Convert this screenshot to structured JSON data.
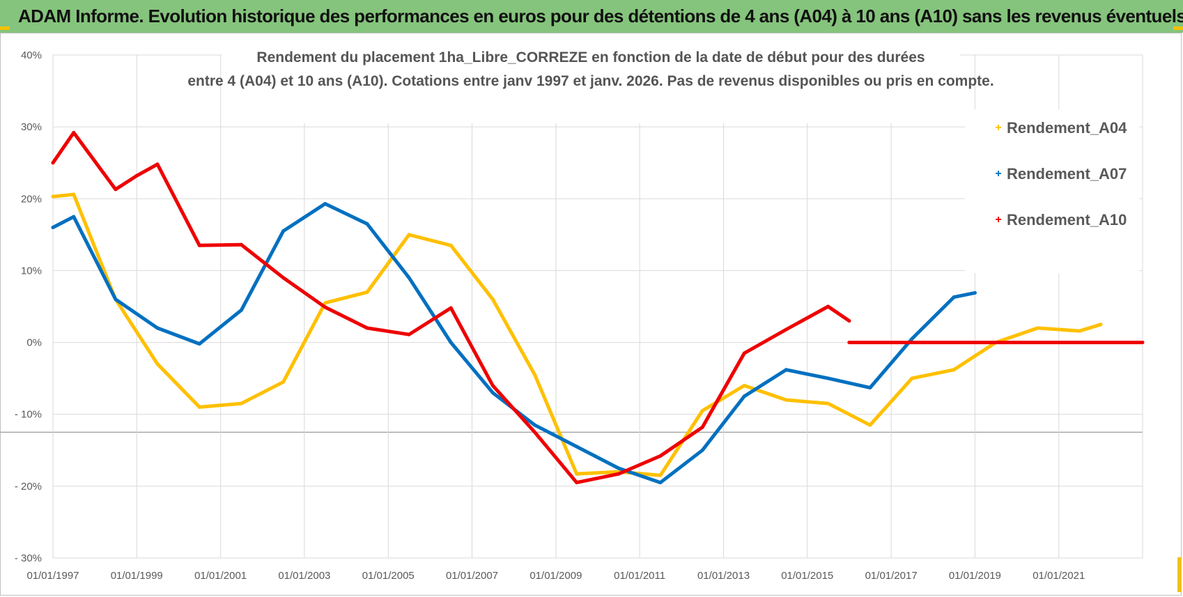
{
  "header": {
    "banner_title": "ADAM Informe. Evolution historique des performances en euros pour des détentions de 4 ans (A04) à 10 ans (A10) sans les revenus éventuels"
  },
  "colors": {
    "banner_bg": "#85c47c",
    "accent_corner": "#f2c200",
    "A04": "#ffc000",
    "A07": "#0070c0",
    "A10": "#ee0000",
    "grid": "#d9d9d9"
  },
  "chart_data": {
    "type": "line",
    "title_lines": [
      "Rendement du placement 1ha_Libre_CORREZE en fonction de la date de début pour des durées",
      "entre 4 (A04) et 10 ans (A10).  Cotations entre janv 1997 et janv. 2026. Pas de revenus disponibles ou pris en compte."
    ],
    "xlabel": "",
    "ylabel": "",
    "x_range": [
      "01/01/1997",
      "01/01/2023"
    ],
    "ylim": [
      -30,
      40
    ],
    "y_ticks": [
      {
        "value": 40,
        "label": "40%"
      },
      {
        "value": 30,
        "label": "30%"
      },
      {
        "value": 20,
        "label": "20%"
      },
      {
        "value": 10,
        "label": "10%"
      },
      {
        "value": 0,
        "label": "0%"
      },
      {
        "value": -10,
        "label": "- 10%"
      },
      {
        "value": -20,
        "label": "- 20%"
      },
      {
        "value": -30,
        "label": "- 30%"
      }
    ],
    "x_ticks": [
      "01/01/1997",
      "01/01/1999",
      "01/01/2001",
      "01/01/2003",
      "01/01/2005",
      "01/01/2007",
      "01/01/2009",
      "01/01/2011",
      "01/01/2013",
      "01/01/2015",
      "01/01/2017",
      "01/01/2019",
      "01/01/2021"
    ],
    "grid": true,
    "legend_position": "top-right",
    "series": [
      {
        "name": "Rendement_A04",
        "color": "#ffc000",
        "points": [
          [
            "1997-01-01",
            20.3
          ],
          [
            "1997-07-01",
            20.6
          ],
          [
            "1998-07-01",
            6.0
          ],
          [
            "1999-07-01",
            -3.0
          ],
          [
            "2000-07-01",
            -9.0
          ],
          [
            "2001-07-01",
            -8.5
          ],
          [
            "2002-07-01",
            -5.5
          ],
          [
            "2003-07-01",
            5.5
          ],
          [
            "2004-07-01",
            7.0
          ],
          [
            "2005-07-01",
            15.0
          ],
          [
            "2006-07-01",
            13.5
          ],
          [
            "2007-07-01",
            6.0
          ],
          [
            "2008-07-01",
            -4.5
          ],
          [
            "2009-07-01",
            -18.3
          ],
          [
            "2010-07-01",
            -18.0
          ],
          [
            "2011-07-01",
            -18.5
          ],
          [
            "2012-07-01",
            -9.5
          ],
          [
            "2013-07-01",
            -6.0
          ],
          [
            "2014-07-01",
            -8.0
          ],
          [
            "2015-07-01",
            -8.5
          ],
          [
            "2016-07-01",
            -11.5
          ],
          [
            "2017-07-01",
            -5.0
          ],
          [
            "2018-07-01",
            -3.8
          ],
          [
            "2019-07-01",
            0.0
          ],
          [
            "2020-07-01",
            2.0
          ],
          [
            "2021-07-01",
            1.6
          ],
          [
            "2022-01-01",
            2.5
          ]
        ]
      },
      {
        "name": "Rendement_A07",
        "color": "#0070c0",
        "points": [
          [
            "1997-01-01",
            16.0
          ],
          [
            "1997-07-01",
            17.5
          ],
          [
            "1998-07-01",
            6.0
          ],
          [
            "1999-07-01",
            2.0
          ],
          [
            "2000-07-01",
            -0.2
          ],
          [
            "2001-07-01",
            4.5
          ],
          [
            "2002-07-01",
            15.5
          ],
          [
            "2003-07-01",
            19.3
          ],
          [
            "2004-07-01",
            16.5
          ],
          [
            "2005-07-01",
            9.0
          ],
          [
            "2006-07-01",
            0.0
          ],
          [
            "2007-07-01",
            -7.0
          ],
          [
            "2008-07-01",
            -11.5
          ],
          [
            "2009-07-01",
            -14.5
          ],
          [
            "2010-07-01",
            -17.5
          ],
          [
            "2011-07-01",
            -19.5
          ],
          [
            "2012-07-01",
            -15.0
          ],
          [
            "2013-07-01",
            -7.5
          ],
          [
            "2014-07-01",
            -3.8
          ],
          [
            "2015-07-01",
            -5.0
          ],
          [
            "2016-07-01",
            -6.3
          ],
          [
            "2017-07-01",
            0.5
          ],
          [
            "2018-07-01",
            6.3
          ],
          [
            "2019-01-01",
            6.9
          ]
        ]
      },
      {
        "name": "Rendement_A10",
        "color": "#ee0000",
        "points": [
          [
            "1997-01-01",
            25.0
          ],
          [
            "1997-07-01",
            29.2
          ],
          [
            "1998-07-01",
            21.3
          ],
          [
            "1999-01-01",
            23.2
          ],
          [
            "1999-07-01",
            24.8
          ],
          [
            "2000-07-01",
            13.5
          ],
          [
            "2001-07-01",
            13.6
          ],
          [
            "2002-07-01",
            9.0
          ],
          [
            "2003-07-01",
            4.9
          ],
          [
            "2004-07-01",
            2.0
          ],
          [
            "2005-07-01",
            1.1
          ],
          [
            "2006-07-01",
            4.8
          ],
          [
            "2007-07-01",
            -6.0
          ],
          [
            "2008-07-01",
            -12.5
          ],
          [
            "2009-07-01",
            -19.5
          ],
          [
            "2010-07-01",
            -18.3
          ],
          [
            "2011-07-01",
            -15.8
          ],
          [
            "2012-07-01",
            -11.8
          ],
          [
            "2013-07-01",
            -1.5
          ],
          [
            "2014-07-01",
            1.8
          ],
          [
            "2015-07-01",
            5.0
          ],
          [
            "2016-01-01",
            3.0
          ]
        ],
        "flat_segment": [
          [
            "2016-01-01",
            0.0
          ],
          [
            "2023-01-01",
            0.0
          ]
        ]
      }
    ]
  }
}
